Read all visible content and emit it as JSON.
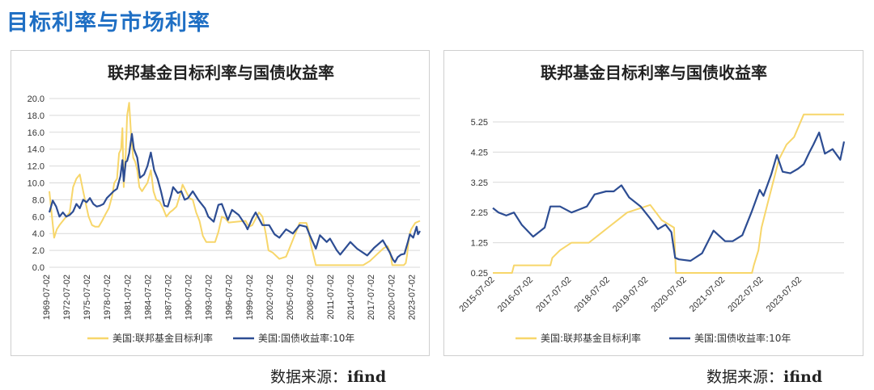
{
  "page": {
    "title": "目标利率与市场利率"
  },
  "sources": [
    {
      "prefix": "数据来源：",
      "name": "ifind"
    },
    {
      "prefix": "数据来源：",
      "name": "ifind"
    }
  ],
  "colors": {
    "fed_rate": "#f7d66a",
    "treasury_10y": "#2d4d93",
    "grid": "#d9d9d9",
    "title_blue": "#1f6fc4"
  },
  "chart_data": [
    {
      "type": "line",
      "title": "联邦基金目标利率与国债收益率",
      "xlabel": "",
      "ylabel": "",
      "x_domain": [
        1969.5,
        2024.3
      ],
      "ylim": [
        0,
        20
      ],
      "yticks": [
        "20.0",
        "18.0",
        "16.0",
        "14.0",
        "12.0",
        "10.0",
        "8.0",
        "6.0",
        "4.0",
        "2.0",
        "0.0"
      ],
      "xticks": [
        "1969-07-02",
        "1972-07-02",
        "1975-07-02",
        "1978-07-02",
        "1981-07-02",
        "1984-07-02",
        "1987-07-02",
        "1990-07-02",
        "1993-07-02",
        "1996-07-02",
        "1999-07-02",
        "2002-07-02",
        "2005-07-02",
        "2008-07-02",
        "2011-07-02",
        "2014-07-02",
        "2017-07-02",
        "2020-07-02",
        "2023-07-02"
      ],
      "grid": true,
      "legend_position": "bottom",
      "series": [
        {
          "name": "美国:联邦基金目标利率",
          "color": "#f7d66a",
          "x": [
            1969.5,
            1970.2,
            1970.6,
            1971.0,
            1971.5,
            1972.0,
            1972.5,
            1973.0,
            1973.5,
            1974.0,
            1974.5,
            1974.9,
            1975.3,
            1975.8,
            1976.3,
            1976.8,
            1977.3,
            1977.8,
            1978.3,
            1978.8,
            1979.1,
            1979.5,
            1979.8,
            1980.1,
            1980.3,
            1980.5,
            1980.8,
            1981.0,
            1981.3,
            1981.6,
            1981.9,
            1982.2,
            1982.5,
            1982.8,
            1983.2,
            1983.6,
            1984.0,
            1984.5,
            1984.9,
            1985.3,
            1985.8,
            1986.3,
            1986.8,
            1987.3,
            1987.8,
            1988.3,
            1988.8,
            1989.2,
            1989.7,
            1990.2,
            1990.7,
            1991.2,
            1991.7,
            1992.2,
            1992.7,
            1994.0,
            1994.5,
            1995.0,
            1995.5,
            1996.0,
            1998.5,
            1999.0,
            1999.5,
            2000.5,
            2001.0,
            2001.5,
            2001.9,
            2002.5,
            2003.5,
            2004.5,
            2005.0,
            2005.5,
            2006.0,
            2006.5,
            2007.5,
            2007.8,
            2008.1,
            2008.3,
            2008.9,
            2015.9,
            2016.9,
            2017.9,
            2018.9,
            2019.5,
            2019.9,
            2020.2,
            2021.9,
            2022.2,
            2022.4,
            2022.6,
            2022.8,
            2023.0,
            2023.6,
            2024.3
          ],
          "y": [
            9.0,
            3.5,
            4.5,
            5.0,
            5.5,
            6.0,
            6.5,
            9.5,
            10.5,
            11.0,
            9.0,
            7.5,
            6.0,
            5.0,
            4.8,
            4.8,
            5.5,
            6.3,
            7.0,
            8.5,
            10.0,
            10.5,
            13.5,
            14.0,
            16.5,
            9.5,
            13.5,
            18.0,
            19.5,
            15.5,
            13.0,
            12.5,
            11.5,
            9.5,
            9.0,
            9.5,
            10.0,
            11.5,
            9.0,
            8.0,
            7.8,
            7.0,
            6.0,
            6.5,
            6.8,
            7.2,
            8.5,
            9.8,
            9.0,
            8.2,
            8.0,
            6.5,
            5.5,
            3.7,
            3.0,
            3.0,
            4.2,
            6.0,
            5.8,
            5.3,
            5.5,
            4.8,
            5.0,
            6.5,
            6.0,
            4.0,
            2.0,
            1.75,
            1.0,
            1.25,
            2.25,
            3.25,
            4.25,
            5.25,
            5.25,
            4.5,
            3.0,
            2.25,
            0.25,
            0.25,
            0.75,
            1.5,
            2.25,
            2.5,
            1.75,
            0.25,
            0.25,
            0.5,
            1.5,
            3.0,
            4.0,
            4.5,
            5.25,
            5.5
          ]
        },
        {
          "name": "美国:国债收益率:10年",
          "color": "#2d4d93",
          "x": [
            1969.5,
            1970.0,
            1970.5,
            1971.0,
            1971.5,
            1972.0,
            1972.5,
            1973.0,
            1973.5,
            1974.0,
            1974.5,
            1975.0,
            1975.5,
            1976.0,
            1976.5,
            1977.0,
            1977.5,
            1978.0,
            1978.5,
            1979.0,
            1979.5,
            1980.0,
            1980.3,
            1980.5,
            1980.8,
            1981.0,
            1981.3,
            1981.7,
            1982.0,
            1982.5,
            1982.9,
            1983.5,
            1984.0,
            1984.5,
            1985.0,
            1985.5,
            1986.0,
            1986.5,
            1987.0,
            1987.5,
            1987.8,
            1988.5,
            1989.0,
            1989.5,
            1990.0,
            1990.7,
            1991.5,
            1992.5,
            1993.0,
            1993.8,
            1994.5,
            1995.0,
            1995.9,
            1996.5,
            1997.5,
            1998.5,
            1998.8,
            1999.5,
            2000.0,
            2001.0,
            2002.0,
            2002.8,
            2003.5,
            2004.5,
            2005.5,
            2006.5,
            2007.5,
            2008.0,
            2008.9,
            2009.5,
            2010.5,
            2011.0,
            2012.0,
            2012.5,
            2013.5,
            2014.0,
            2015.0,
            2016.5,
            2017.5,
            2018.8,
            2019.8,
            2020.3,
            2020.6,
            2021.0,
            2021.5,
            2022.0,
            2022.5,
            2022.8,
            2023.3,
            2023.8,
            2024.0,
            2024.3
          ],
          "y": [
            6.5,
            7.9,
            7.2,
            6.0,
            6.5,
            6.0,
            6.2,
            6.6,
            7.5,
            7.0,
            8.0,
            7.7,
            8.2,
            7.5,
            7.2,
            7.3,
            7.5,
            8.2,
            8.6,
            9.0,
            9.3,
            10.8,
            12.7,
            10.2,
            12.5,
            12.6,
            13.5,
            15.8,
            14.0,
            13.0,
            10.6,
            11.0,
            12.0,
            13.6,
            11.5,
            10.5,
            9.0,
            7.3,
            7.2,
            8.5,
            9.5,
            8.8,
            9.0,
            8.0,
            8.2,
            9.0,
            8.0,
            7.0,
            6.0,
            5.4,
            7.4,
            7.5,
            5.6,
            6.8,
            6.2,
            5.0,
            4.5,
            5.8,
            6.5,
            5.0,
            5.0,
            3.9,
            3.5,
            4.5,
            4.0,
            5.0,
            4.8,
            3.8,
            2.2,
            3.8,
            3.0,
            3.4,
            2.0,
            1.5,
            2.5,
            3.0,
            2.2,
            1.4,
            2.3,
            3.2,
            1.8,
            0.9,
            0.6,
            1.2,
            1.5,
            1.6,
            3.0,
            3.9,
            3.5,
            4.8,
            3.9,
            4.3
          ]
        }
      ]
    },
    {
      "type": "line",
      "title": "联邦基金目标利率与国债收益率",
      "xlabel": "",
      "ylabel": "",
      "x_domain": [
        2015.45,
        2024.6
      ],
      "ylim": [
        0.25,
        5.25
      ],
      "yticks": [
        "5.25",
        "4.25",
        "3.25",
        "2.25",
        "1.25",
        "0.25"
      ],
      "xticks": [
        "2015-07-02",
        "2016-07-02",
        "2017-07-02",
        "2018-07-02",
        "2019-07-02",
        "2020-07-02",
        "2021-07-02",
        "2022-07-02",
        "2023-07-02"
      ],
      "grid": true,
      "legend_position": "bottom",
      "series": [
        {
          "name": "美国:联邦基金目标利率",
          "color": "#f7d66a",
          "x": [
            2015.45,
            2015.95,
            2016.0,
            2016.95,
            2017.0,
            2017.2,
            2017.5,
            2017.95,
            2018.2,
            2018.45,
            2018.7,
            2018.95,
            2019.55,
            2019.7,
            2019.85,
            2020.17,
            2020.22,
            2022.2,
            2022.25,
            2022.37,
            2022.45,
            2022.6,
            2022.75,
            2022.9,
            2023.1,
            2023.3,
            2023.55,
            2024.6
          ],
          "y": [
            0.25,
            0.25,
            0.5,
            0.5,
            0.75,
            1.0,
            1.25,
            1.25,
            1.5,
            1.75,
            2.0,
            2.25,
            2.5,
            2.25,
            2.0,
            1.75,
            0.25,
            0.25,
            0.5,
            1.0,
            1.75,
            2.5,
            3.25,
            4.0,
            4.5,
            4.75,
            5.5,
            5.5
          ]
        },
        {
          "name": "美国:国债收益率:10年",
          "color": "#2d4d93",
          "x": [
            2015.45,
            2015.6,
            2015.8,
            2016.0,
            2016.2,
            2016.5,
            2016.8,
            2016.95,
            2017.2,
            2017.5,
            2017.7,
            2017.9,
            2018.1,
            2018.4,
            2018.6,
            2018.8,
            2019.0,
            2019.3,
            2019.55,
            2019.75,
            2019.95,
            2020.1,
            2020.2,
            2020.3,
            2020.6,
            2020.9,
            2021.2,
            2021.5,
            2021.7,
            2021.95,
            2022.2,
            2022.4,
            2022.5,
            2022.7,
            2022.85,
            2023.0,
            2023.2,
            2023.4,
            2023.55,
            2023.7,
            2023.8,
            2023.95,
            2024.1,
            2024.3,
            2024.5,
            2024.6
          ],
          "y": [
            2.4,
            2.25,
            2.15,
            2.25,
            1.85,
            1.45,
            1.75,
            2.45,
            2.45,
            2.25,
            2.35,
            2.45,
            2.85,
            2.95,
            2.95,
            3.15,
            2.75,
            2.45,
            2.05,
            1.7,
            1.85,
            1.6,
            0.75,
            0.7,
            0.65,
            0.9,
            1.65,
            1.3,
            1.3,
            1.5,
            2.3,
            3.0,
            2.8,
            3.5,
            4.15,
            3.6,
            3.55,
            3.7,
            3.85,
            4.25,
            4.5,
            4.9,
            4.2,
            4.35,
            4.0,
            4.6
          ]
        }
      ]
    }
  ]
}
